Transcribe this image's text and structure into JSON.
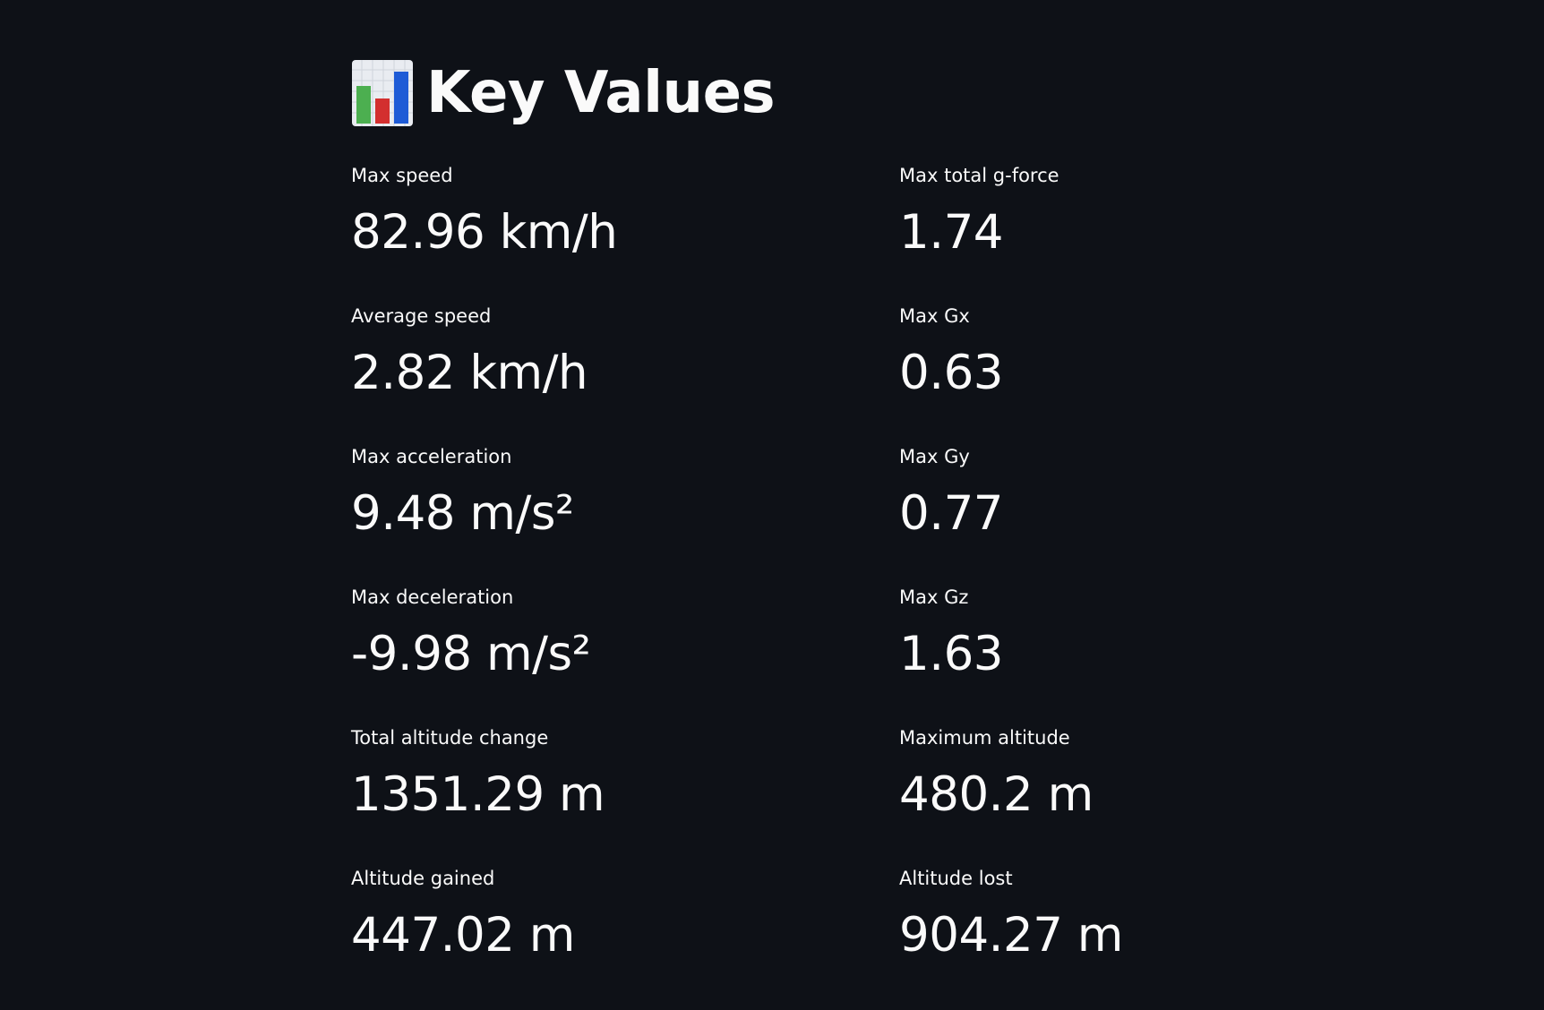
{
  "header": {
    "title": "Key Values",
    "icon": "bar-chart-icon"
  },
  "colors": {
    "background": "#0e1117",
    "text": "#fafafa"
  },
  "metrics": [
    {
      "label": "Max speed",
      "value": "82.96 km/h"
    },
    {
      "label": "Max total g-force",
      "value": "1.74"
    },
    {
      "label": "Average speed",
      "value": "2.82 km/h"
    },
    {
      "label": "Max Gx",
      "value": "0.63"
    },
    {
      "label": "Max acceleration",
      "value": "9.48 m/s²"
    },
    {
      "label": "Max Gy",
      "value": "0.77"
    },
    {
      "label": "Max deceleration",
      "value": "-9.98 m/s²"
    },
    {
      "label": "Max Gz",
      "value": "1.63"
    },
    {
      "label": "Total altitude change",
      "value": "1351.29 m"
    },
    {
      "label": "Maximum altitude",
      "value": "480.2 m"
    },
    {
      "label": "Altitude gained",
      "value": "447.02 m"
    },
    {
      "label": "Altitude lost",
      "value": "904.27 m"
    }
  ]
}
